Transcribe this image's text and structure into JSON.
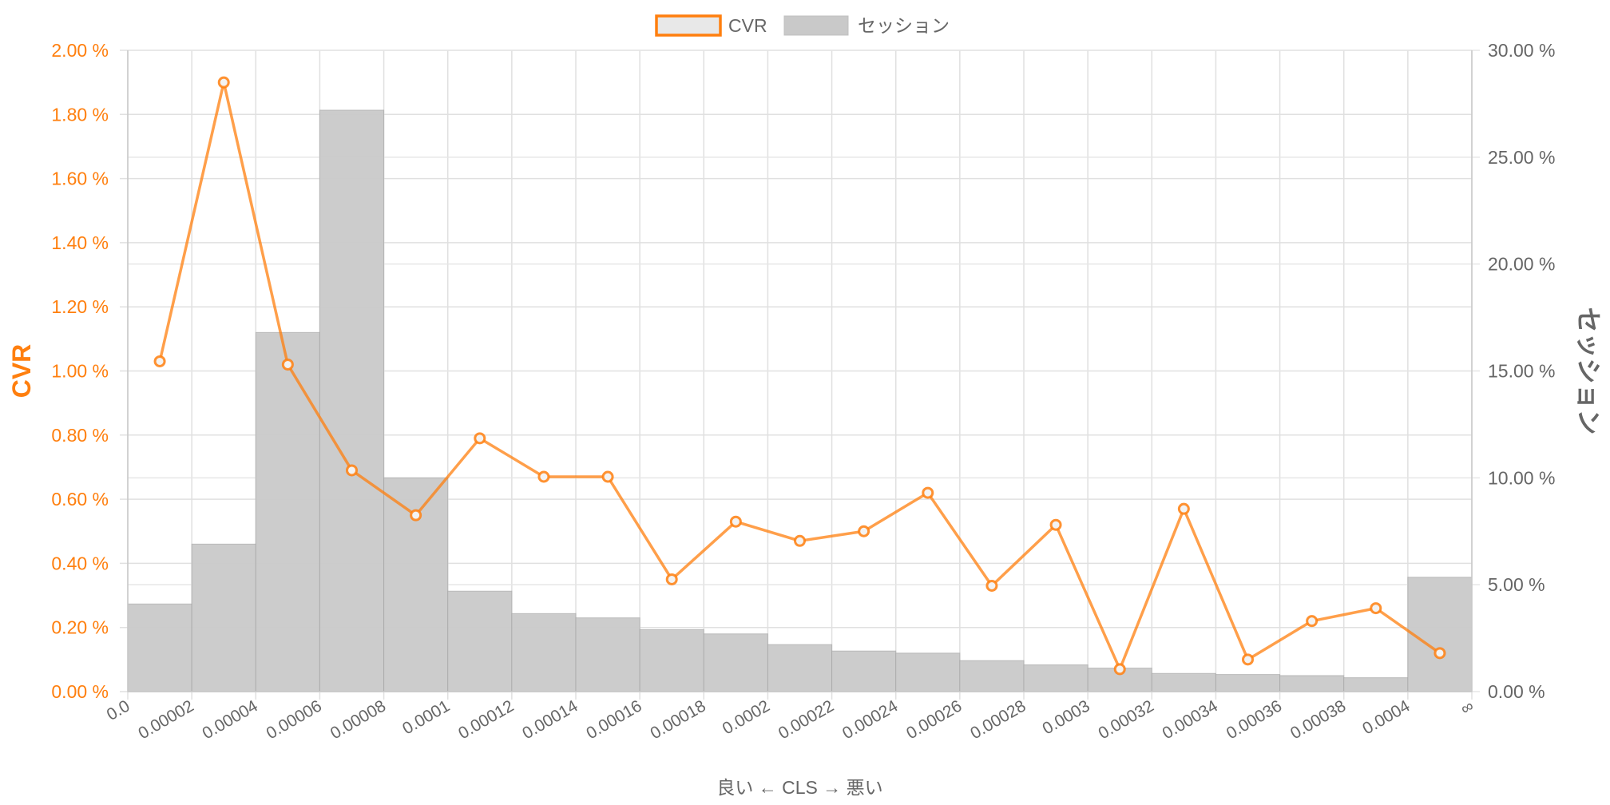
{
  "chart_data": {
    "type": "bar",
    "x_tick_labels": [
      "0.0",
      "0.00002",
      "0.00004",
      "0.00006",
      "0.00008",
      "0.0001",
      "0.00012",
      "0.00014",
      "0.00016",
      "0.00018",
      "0.0002",
      "0.00022",
      "0.00024",
      "0.00026",
      "0.00028",
      "0.0003",
      "0.00032",
      "0.00034",
      "0.00036",
      "0.00038",
      "0.0004",
      "∞"
    ],
    "xlabel": "良い ← CLS → 悪い",
    "legend": {
      "position": "top-center",
      "entries": [
        "CVR",
        "セッション"
      ]
    },
    "y_left": {
      "label": "CVR",
      "min": 0,
      "max": 2.0,
      "ticks": [
        0,
        0.2,
        0.4,
        0.6,
        0.8,
        1.0,
        1.2,
        1.4,
        1.6,
        1.8,
        2.0
      ],
      "tick_labels": [
        "0.00 %",
        "0.20 %",
        "0.40 %",
        "0.60 %",
        "0.80 %",
        "1.00 %",
        "1.20 %",
        "1.40 %",
        "1.60 %",
        "1.80 %",
        "2.00 %"
      ],
      "color": "#ff7f0e"
    },
    "y_right": {
      "label": "セッション",
      "min": 0,
      "max": 30,
      "ticks": [
        0,
        5,
        10,
        15,
        20,
        25,
        30
      ],
      "tick_labels": [
        "0.00 %",
        "5.00 %",
        "10.00 %",
        "15.00 %",
        "20.00 %",
        "25.00 %",
        "30.00 %"
      ],
      "color": "#666666"
    },
    "grid": true,
    "series": [
      {
        "name": "セッション",
        "type": "bar",
        "axis": "right",
        "color": "#c9c9c9",
        "values": [
          4.1,
          6.9,
          16.8,
          27.2,
          10.0,
          4.7,
          3.65,
          3.45,
          2.9,
          2.7,
          2.2,
          1.9,
          1.8,
          1.45,
          1.25,
          1.1,
          0.85,
          0.8,
          0.75,
          0.65,
          5.35
        ]
      },
      {
        "name": "CVR",
        "type": "line",
        "axis": "left",
        "color": "#ff7f0e",
        "values": [
          1.03,
          1.9,
          1.02,
          0.69,
          0.55,
          0.79,
          0.67,
          0.67,
          0.35,
          0.53,
          0.47,
          0.5,
          0.62,
          0.33,
          0.52,
          0.07,
          0.57,
          0.1,
          0.22,
          0.26,
          0.12
        ]
      }
    ]
  }
}
